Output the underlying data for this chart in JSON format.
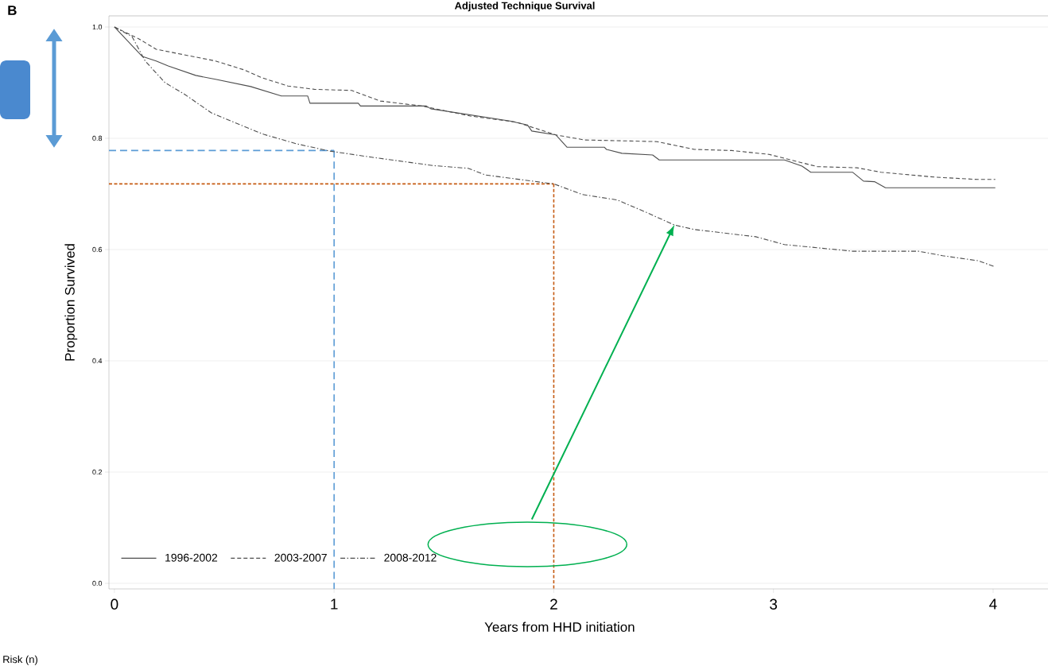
{
  "chart_data": {
    "type": "line",
    "title": "Adjusted Technique Survival",
    "xlabel": "Years from HHD initiation",
    "ylabel": "Proportion Survived",
    "annotations": [
      "B",
      "Risk (n)"
    ],
    "xlim": [
      -0.025,
      4.25
    ],
    "ylim": [
      -0.01,
      1.02
    ],
    "xticks": [
      0,
      1,
      2,
      3,
      4
    ],
    "yticks": [
      {
        "value": 0,
        "label": "0.0"
      },
      {
        "value": 0.2,
        "label": "0.2"
      },
      {
        "value": 0.4,
        "label": "0.4"
      },
      {
        "value": 0.6,
        "label": "0.6"
      },
      {
        "value": 0.8,
        "label": "0.8"
      },
      {
        "value": 1,
        "label": "1.0"
      }
    ],
    "grid": "y",
    "legend": "bottom left",
    "series": [
      {
        "name": "1996-2002",
        "color": "#4d4d4d",
        "line_style": "solid",
        "x": [
          0,
          0.127,
          0.19,
          0.245,
          0.37,
          0.46,
          0.62,
          0.76,
          0.88,
          0.89,
          1.11,
          1.12,
          1.42,
          1.44,
          1.8,
          1.88,
          1.9,
          2.01,
          2.06,
          2.23,
          2.24,
          2.31,
          2.45,
          2.48,
          3.05,
          3.13,
          3.17,
          3.36,
          3.41,
          3.46,
          3.51,
          4.01
        ],
        "values": [
          1.0,
          0.947,
          0.939,
          0.93,
          0.913,
          0.906,
          0.893,
          0.876,
          0.876,
          0.863,
          0.863,
          0.858,
          0.858,
          0.853,
          0.831,
          0.824,
          0.813,
          0.806,
          0.784,
          0.784,
          0.78,
          0.773,
          0.77,
          0.761,
          0.761,
          0.75,
          0.739,
          0.739,
          0.723,
          0.722,
          0.711,
          0.711
        ]
      },
      {
        "name": "2003-2007",
        "color": "#4d4d4d",
        "line_style": "dashed",
        "x": [
          0,
          0.11,
          0.19,
          0.37,
          0.46,
          0.59,
          0.67,
          0.79,
          0.91,
          1.08,
          1.21,
          1.4,
          1.62,
          1.83,
          2.01,
          2.14,
          2.47,
          2.64,
          2.81,
          2.98,
          3.2,
          3.38,
          3.49,
          3.74,
          3.93,
          4.01
        ],
        "values": [
          1.0,
          0.979,
          0.96,
          0.946,
          0.939,
          0.923,
          0.909,
          0.894,
          0.888,
          0.886,
          0.867,
          0.858,
          0.84,
          0.829,
          0.806,
          0.797,
          0.794,
          0.78,
          0.778,
          0.771,
          0.749,
          0.747,
          0.739,
          0.73,
          0.726,
          0.726
        ]
      },
      {
        "name": "2008-2012",
        "color": "#4d4d4d",
        "line_style": "dashdot",
        "x": [
          0,
          0.08,
          0.14,
          0.23,
          0.32,
          0.44,
          0.53,
          0.68,
          0.83,
          0.98,
          1.17,
          1.45,
          1.61,
          1.69,
          2.0,
          2.13,
          2.29,
          2.42,
          2.55,
          2.64,
          2.92,
          3.05,
          3.36,
          3.66,
          3.77,
          3.93,
          4.01
        ],
        "values": [
          1.0,
          0.983,
          0.939,
          0.9,
          0.879,
          0.846,
          0.831,
          0.807,
          0.79,
          0.777,
          0.766,
          0.751,
          0.746,
          0.734,
          0.718,
          0.699,
          0.689,
          0.667,
          0.644,
          0.636,
          0.623,
          0.609,
          0.597,
          0.597,
          0.589,
          0.58,
          0.569
        ]
      }
    ],
    "ref_lines": [
      {
        "axis": "y",
        "value": 0.778,
        "color": "#5b9bd5",
        "line_style": "dashed"
      },
      {
        "axis": "x",
        "value": 1,
        "color": "#5b9bd5",
        "line_style": "dashed"
      },
      {
        "axis": "y",
        "value": 0.718,
        "color": "#c55a11",
        "line_style": "dotted"
      },
      {
        "axis": "x",
        "value": 2,
        "color": "#c55a11",
        "line_style": "dotted"
      }
    ]
  }
}
